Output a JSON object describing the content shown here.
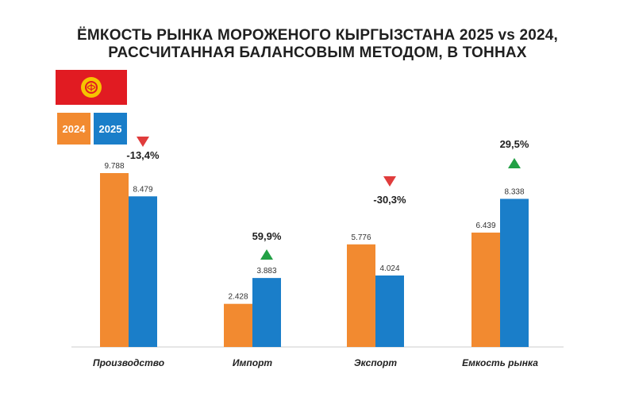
{
  "title_line1": "ЁМКОСТЬ РЫНКА МОРОЖЕНОГО КЫРГЫЗСТАНА 2025 vs 2024,",
  "title_line2": "РАССЧИТАННАЯ БАЛАНСОВЫМ МЕТОДОМ, В ТОННАХ",
  "legend": [
    {
      "label": "2024",
      "color": "#f28a30"
    },
    {
      "label": "2025",
      "color": "#1a7ec9"
    }
  ],
  "colors": {
    "down": "#e03c3c",
    "up": "#22a045",
    "flag": "#e11b22",
    "sun": "#f6c400"
  },
  "chart_data": {
    "type": "bar",
    "categories": [
      "Производство",
      "Импорт",
      "Экспорт",
      "Емкость рынка"
    ],
    "series": [
      {
        "name": "2024",
        "values": [
          9788,
          2428,
          5776,
          6439
        ],
        "labels": [
          "9.788",
          "2.428",
          "5.776",
          "6.439"
        ]
      },
      {
        "name": "2025",
        "values": [
          8479,
          3883,
          4024,
          8338
        ],
        "labels": [
          "8.479",
          "3.883",
          "4.024",
          "8.338"
        ]
      }
    ],
    "changes": [
      {
        "label": "-13,4%",
        "direction": "down"
      },
      {
        "label": "59,9%",
        "direction": "up"
      },
      {
        "label": "-30,3%",
        "direction": "down"
      },
      {
        "label": "29,5%",
        "direction": "up"
      }
    ],
    "ylim": [
      0,
      10000
    ],
    "legend_position": "top-left",
    "grid": false
  }
}
